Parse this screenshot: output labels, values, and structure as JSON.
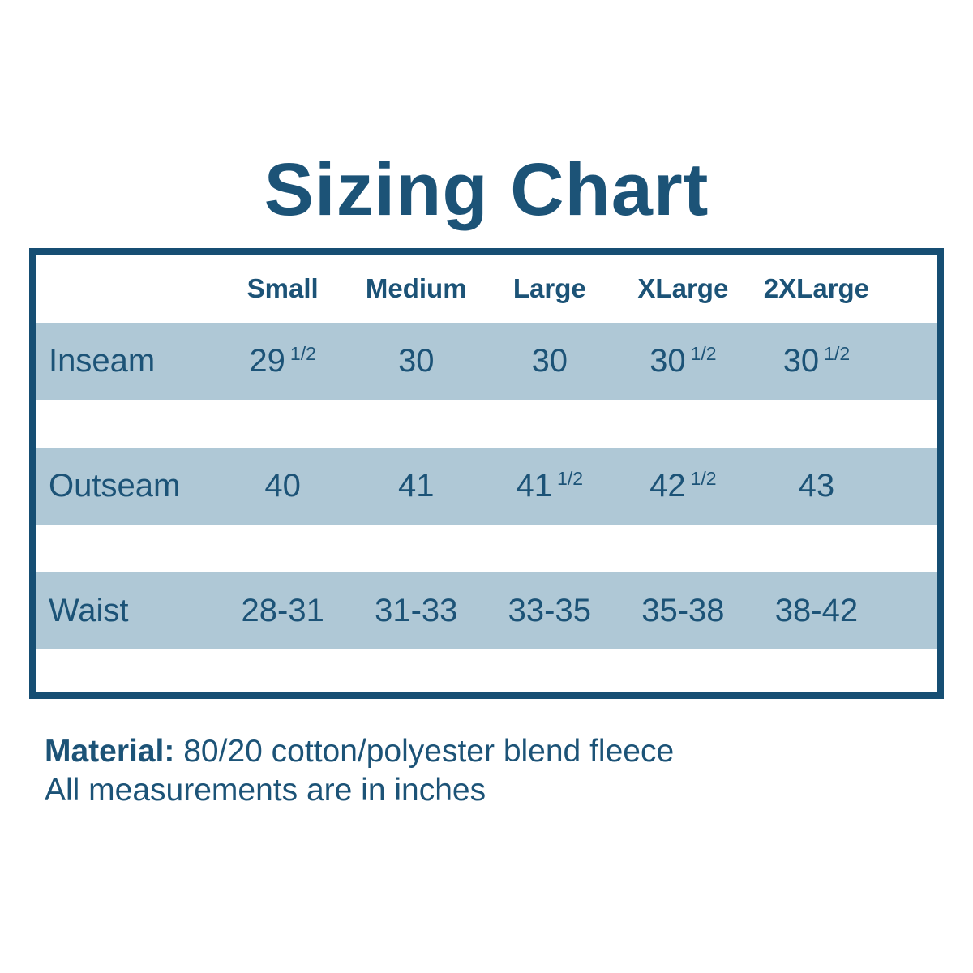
{
  "title": "Sizing Chart",
  "table": {
    "size_columns": [
      "Small",
      "Medium",
      "Large",
      "XLarge",
      "2XLarge"
    ],
    "rows": [
      {
        "label": "Inseam",
        "values": [
          "29 1/2",
          "30",
          "30",
          "30 1/2",
          "30 1/2"
        ]
      },
      {
        "label": "Outseam",
        "values": [
          "40",
          "41",
          "41 1/2",
          "42 1/2",
          "43"
        ]
      },
      {
        "label": "Waist",
        "values": [
          "28-31",
          "31-33",
          "33-35",
          "35-38",
          "38-42"
        ]
      }
    ]
  },
  "footer": {
    "material_label": "Material:",
    "material_value": "80/20 cotton/polyester blend fleece",
    "note": "All measurements are in inches"
  },
  "colors": {
    "text": "#1c5377",
    "border": "#164e73",
    "row_highlight": "#afc8d6",
    "background": "#ffffff"
  },
  "chart_data": {
    "type": "table",
    "title": "Sizing Chart",
    "columns": [
      "",
      "Small",
      "Medium",
      "Large",
      "XLarge",
      "2XLarge"
    ],
    "rows": [
      [
        "Inseam",
        "29 1/2",
        "30",
        "30",
        "30 1/2",
        "30 1/2"
      ],
      [
        "Outseam",
        "40",
        "41",
        "41 1/2",
        "42 1/2",
        "43"
      ],
      [
        "Waist",
        "28-31",
        "31-33",
        "33-35",
        "35-38",
        "38-42"
      ]
    ],
    "notes": [
      "Material: 80/20 cotton/polyester blend fleece",
      "All measurements are in inches"
    ],
    "units": "inches"
  }
}
